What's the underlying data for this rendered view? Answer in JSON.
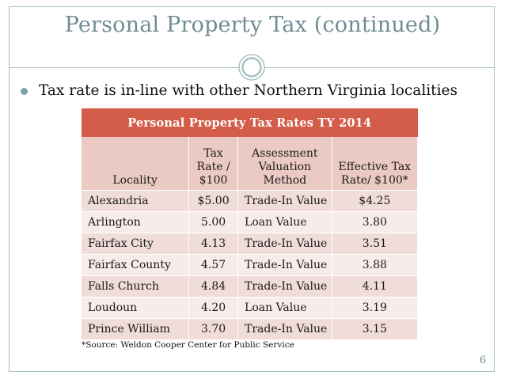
{
  "slide": {
    "title": "Personal Property Tax (continued)",
    "bullet": "Tax rate is in-line with other Northern Virginia localities",
    "source": "*Source:  Weldon Cooper Center for Public Service",
    "page_number": "6"
  },
  "table": {
    "caption": "Personal Property Tax Rates TY 2014",
    "headers": {
      "locality": "Locality",
      "tax_rate_lines": [
        "Tax",
        "Rate /",
        "$100"
      ],
      "method_lines": [
        "Assessment",
        "Valuation",
        "Method"
      ],
      "effective_lines": [
        "Effective Tax",
        "Rate/ $100*"
      ]
    },
    "rows": [
      {
        "locality": "Alexandria",
        "tax_rate": "$5.00",
        "method": "Trade-In Value",
        "effective": "$4.25"
      },
      {
        "locality": "Arlington",
        "tax_rate": "5.00",
        "method": "Loan Value",
        "effective": "3.80"
      },
      {
        "locality": "Fairfax City",
        "tax_rate": "4.13",
        "method": "Trade-In Value",
        "effective": "3.51"
      },
      {
        "locality": "Fairfax County",
        "tax_rate": "4.57",
        "method": "Trade-In Value",
        "effective": "3.88"
      },
      {
        "locality": "Falls Church",
        "tax_rate": "4.84",
        "method": "Trade-In Value",
        "effective": "4.11"
      },
      {
        "locality": "Loudoun",
        "tax_rate": "4.20",
        "method": "Loan Value",
        "effective": "3.19"
      },
      {
        "locality": "Prince William",
        "tax_rate": "3.70",
        "method": "Trade-In Value",
        "effective": "3.15"
      }
    ]
  },
  "colors": {
    "accent": "#6f8c93",
    "header_band": "#d35d48",
    "header_cells": "#eccac4",
    "row_odd": "#f0dcd8",
    "row_even": "#f8ecea"
  }
}
